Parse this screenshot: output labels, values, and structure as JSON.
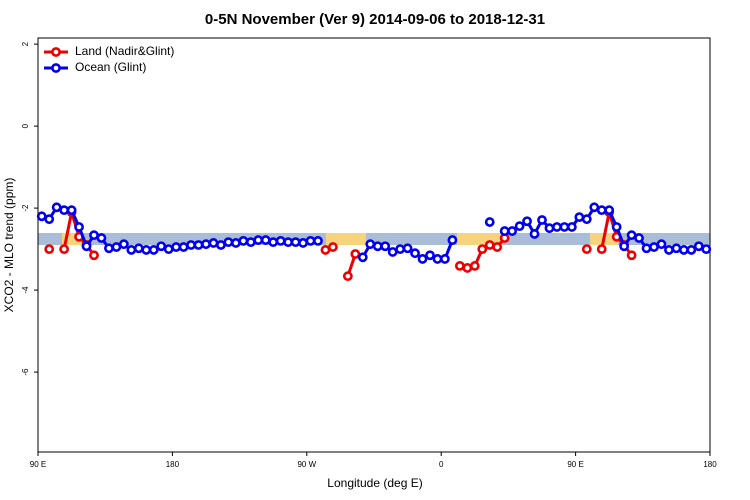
{
  "chart_data": {
    "type": "line",
    "title": "0-5N November (Ver 9)   2014-09-06 to 2018-12-31",
    "x_label": "Longitude (deg E)",
    "y_label": "XCO2 - MLO trend (ppm)",
    "xlim": [
      90,
      540
    ],
    "xticks": [
      {
        "value": 90,
        "label": "90 E"
      },
      180,
      {
        "value": 270,
        "label": "90 W"
      },
      {
        "value": 360,
        "label": "0"
      },
      {
        "value": 450,
        "label": "90 E"
      },
      {
        "value": 540,
        "label": "180"
      }
    ],
    "ylim": [
      -7.95,
      2.15
    ],
    "yticks": [
      -6,
      -4,
      -2,
      0,
      2
    ],
    "legend": "top-left",
    "series": [
      {
        "name": "Land (Nadir&Glint)",
        "color": "#ee0000",
        "x": [
          97.5,
          102.5,
          107.5,
          112.5,
          117.5,
          122.5,
          127.5,
          132.5,
          282.5,
          287.5,
          292.5,
          297.5,
          302.5,
          307.5,
          372.5,
          377.5,
          382.5,
          387.5,
          392.5,
          397.5,
          402.5,
          407.5,
          457.5,
          462.5,
          467.5,
          472.5,
          477.5,
          482.5,
          487.5
        ],
        "values": [
          -3.0,
          null,
          -3.0,
          -2.1,
          -2.7,
          -2.9,
          -3.15,
          null,
          -3.02,
          -2.95,
          null,
          -3.66,
          -3.12,
          null,
          -3.41,
          -3.46,
          -3.41,
          -3.0,
          -2.9,
          -2.95,
          -2.73,
          null,
          -3.0,
          null,
          -3.0,
          -2.1,
          -2.7,
          -2.9,
          -3.15
        ]
      },
      {
        "name": "Ocean (Glint)",
        "color": "#0000ee",
        "x": [
          92.5,
          97.5,
          102.5,
          107.5,
          112.5,
          117.5,
          122.5,
          127.5,
          132.5,
          137.5,
          142.5,
          147.5,
          152.5,
          157.5,
          162.5,
          167.5,
          172.5,
          177.5,
          182.5,
          187.5,
          192.5,
          197.5,
          202.5,
          207.5,
          212.5,
          217.5,
          222.5,
          227.5,
          232.5,
          237.5,
          242.5,
          247.5,
          252.5,
          257.5,
          262.5,
          267.5,
          272.5,
          277.5,
          282.5,
          307.5,
          312.5,
          317.5,
          322.5,
          327.5,
          332.5,
          337.5,
          342.5,
          347.5,
          352.5,
          357.5,
          362.5,
          367.5,
          372.5,
          392.5,
          397.5,
          402.5,
          407.5,
          412.5,
          417.5,
          422.5,
          427.5,
          432.5,
          437.5,
          442.5,
          447.5,
          452.5,
          457.5,
          462.5,
          467.5,
          472.5,
          477.5,
          482.5,
          487.5,
          492.5,
          497.5,
          502.5,
          507.5,
          512.5,
          517.5,
          522.5,
          527.5,
          532.5,
          537.5
        ],
        "values": [
          -2.2,
          -2.27,
          -1.98,
          -2.05,
          -2.05,
          -2.46,
          -2.93,
          -2.66,
          -2.73,
          -2.98,
          -2.95,
          -2.88,
          -3.02,
          -2.98,
          -3.02,
          -3.02,
          -2.93,
          -3.0,
          -2.95,
          -2.95,
          -2.9,
          -2.9,
          -2.88,
          -2.85,
          -2.9,
          -2.83,
          -2.85,
          -2.8,
          -2.83,
          -2.78,
          -2.78,
          -2.83,
          -2.8,
          -2.83,
          -2.83,
          -2.85,
          -2.8,
          -2.8,
          null,
          -3.2,
          -2.88,
          -2.93,
          -2.93,
          -3.07,
          -3.0,
          -2.98,
          -3.1,
          -3.24,
          -3.15,
          -3.24,
          -3.24,
          -2.78,
          null,
          -2.34,
          null,
          -2.56,
          -2.56,
          -2.44,
          -2.32,
          -2.63,
          -2.29,
          -2.49,
          -2.46,
          -2.46,
          -2.46,
          -2.22,
          -2.27,
          -1.98,
          -2.05,
          -2.05,
          -2.46,
          -2.93,
          -2.66,
          -2.73,
          -2.98,
          -2.95,
          -2.88,
          -3.02,
          -2.98,
          -3.02,
          -3.02,
          -2.93,
          -3.0
        ]
      }
    ]
  }
}
